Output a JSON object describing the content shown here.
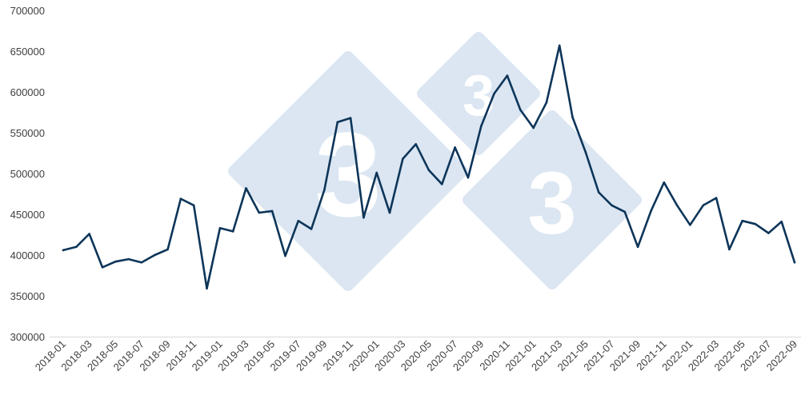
{
  "chart_data": {
    "type": "line",
    "title": "",
    "xlabel": "",
    "ylabel": "",
    "ylim": [
      300000,
      700000
    ],
    "yticks": [
      300000,
      350000,
      400000,
      450000,
      500000,
      550000,
      600000,
      650000,
      700000
    ],
    "ytick_labels": [
      "300000",
      "350000",
      "400000",
      "450000",
      "500000",
      "550000",
      "600000",
      "650000",
      "700000"
    ],
    "grid": false,
    "legend": "none",
    "x": [
      "2018-01",
      "2018-02",
      "2018-03",
      "2018-04",
      "2018-05",
      "2018-06",
      "2018-07",
      "2018-08",
      "2018-09",
      "2018-10",
      "2018-11",
      "2018-12",
      "2019-01",
      "2019-02",
      "2019-03",
      "2019-04",
      "2019-05",
      "2019-06",
      "2019-07",
      "2019-08",
      "2019-09",
      "2019-10",
      "2019-11",
      "2019-12",
      "2020-01",
      "2020-02",
      "2020-03",
      "2020-04",
      "2020-05",
      "2020-06",
      "2020-07",
      "2020-08",
      "2020-09",
      "2020-10",
      "2020-11",
      "2020-12",
      "2021-01",
      "2021-02",
      "2021-03",
      "2021-04",
      "2021-05",
      "2021-06",
      "2021-07",
      "2021-08",
      "2021-09",
      "2021-10",
      "2021-11",
      "2021-12",
      "2022-01",
      "2022-02",
      "2022-03",
      "2022-04",
      "2022-05",
      "2022-06",
      "2022-07",
      "2022-08",
      "2022-09"
    ],
    "xtick_labels": [
      "2018-01",
      "2018-03",
      "2018-05",
      "2018-07",
      "2018-09",
      "2018-11",
      "2019-01",
      "2019-03",
      "2019-05",
      "2019-07",
      "2019-09",
      "2019-11",
      "2020-01",
      "2020-03",
      "2020-05",
      "2020-07",
      "2020-09",
      "2020-11",
      "2021-01",
      "2021-03",
      "2021-05",
      "2021-07",
      "2021-09",
      "2021-11",
      "2022-01",
      "2022-03",
      "2022-05",
      "2022-07",
      "2022-09"
    ],
    "series": [
      {
        "color": "#0d3559",
        "values": [
          406000,
          410000,
          426000,
          385000,
          392000,
          395000,
          391000,
          400000,
          407000,
          469000,
          461000,
          359000,
          433000,
          429000,
          482000,
          452000,
          454000,
          399000,
          442000,
          432000,
          480000,
          563000,
          568000,
          446000,
          501000,
          452000,
          518000,
          536000,
          504000,
          487000,
          532000,
          495000,
          558000,
          598000,
          620000,
          578000,
          556000,
          587000,
          657000,
          569000,
          526000,
          477000,
          461000,
          453000,
          410000,
          454000,
          489000,
          461000,
          437000,
          461000,
          470000,
          407000,
          442000,
          438000,
          427000,
          441000,
          391000
        ]
      }
    ]
  },
  "watermark": {
    "glyph": "3",
    "color": "#dbe6f2"
  }
}
